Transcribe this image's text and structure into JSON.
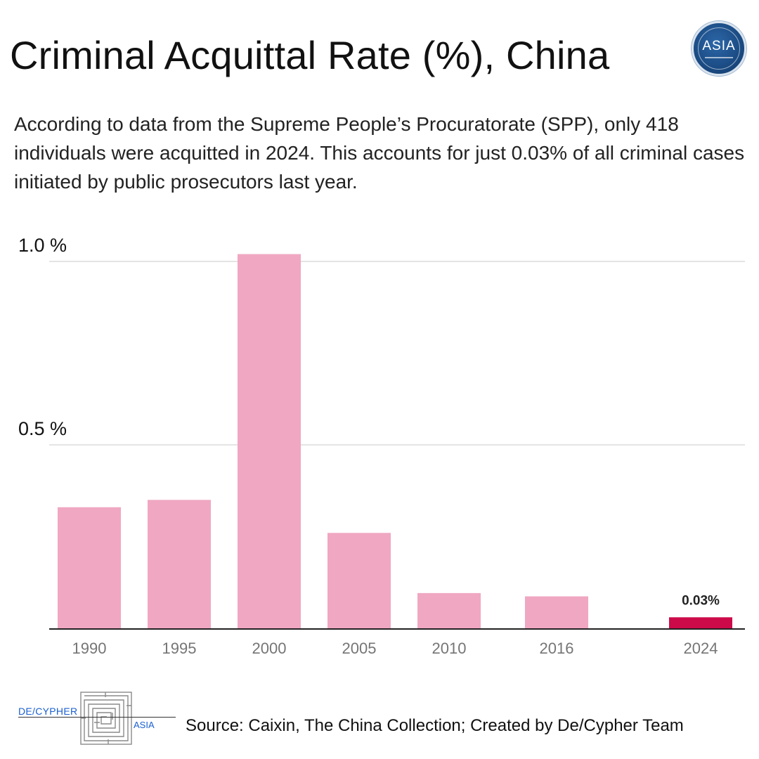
{
  "header": {
    "title": "Criminal Acquittal Rate (%), China",
    "logo_text": "ASIA"
  },
  "description": "According to data from the Supreme People’s Procuratorate (SPP), only 418 individuals were acquitted in 2024. This accounts for just 0.03% of all criminal cases initiated by public prosecutors last year.",
  "chart_data": {
    "type": "bar",
    "title": "Criminal Acquittal Rate (%), China",
    "xlabel": "",
    "ylabel": "",
    "categories": [
      "1990",
      "1995",
      "2000",
      "2005",
      "2010",
      "2016",
      "2024"
    ],
    "values": [
      0.33,
      0.35,
      1.02,
      0.26,
      0.096,
      0.087,
      0.03
    ],
    "ylim": [
      0,
      1.0
    ],
    "yticks": [
      {
        "value": 0.5,
        "label": "0.5 %"
      },
      {
        "value": 1.0,
        "label": "1.0 %"
      }
    ],
    "grid": true,
    "highlight_index": 6,
    "data_labels": [
      {
        "index": 6,
        "label": "0.03%"
      }
    ],
    "colors": {
      "bar": "#f0a7c2",
      "highlight": "#cc0a4a",
      "grid": "#e4e4e4",
      "axis": "#222222"
    }
  },
  "footer": {
    "brand_left": "DE/CYPHER",
    "brand_right": "ASIA",
    "source": "Source: Caixin, The China Collection;  Created by De/Cypher Team"
  }
}
